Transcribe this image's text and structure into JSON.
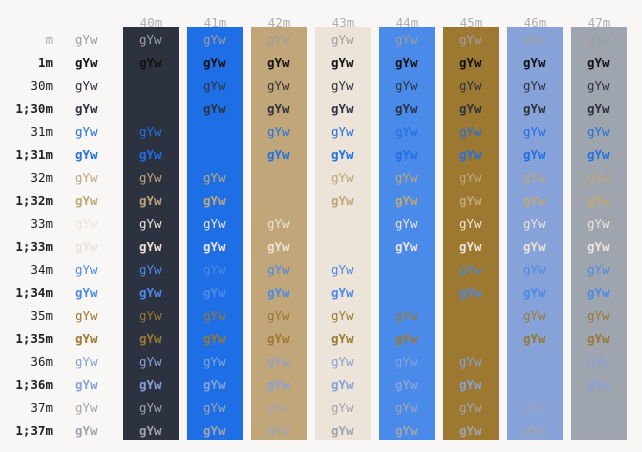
{
  "sample_text": "gYw",
  "foregrounds": [
    {
      "label": "m",
      "bold": false,
      "color": "#9e9e9e",
      "label_color": "#aeaeae"
    },
    {
      "label": "1m",
      "bold": true,
      "color": "#111111",
      "label_color": "#1e1e1e"
    },
    {
      "label": "30m",
      "bold": false,
      "color": "#2d3240",
      "label_color": "#1e1e1e"
    },
    {
      "label": "1;30m",
      "bold": true,
      "color": "#2d3240",
      "label_color": "#1e1e1e"
    },
    {
      "label": "31m",
      "bold": false,
      "color": "#1f6fe5",
      "label_color": "#1e1e1e"
    },
    {
      "label": "1;31m",
      "bold": true,
      "color": "#1f6fe5",
      "label_color": "#1e1e1e"
    },
    {
      "label": "32m",
      "bold": false,
      "color": "#c0a678",
      "label_color": "#1e1e1e"
    },
    {
      "label": "1;32m",
      "bold": true,
      "color": "#c0a678",
      "label_color": "#1e1e1e"
    },
    {
      "label": "33m",
      "bold": false,
      "color": "#ece4d8",
      "label_color": "#1e1e1e"
    },
    {
      "label": "1;33m",
      "bold": true,
      "color": "#ece4d8",
      "label_color": "#1e1e1e"
    },
    {
      "label": "34m",
      "bold": false,
      "color": "#4a8ae8",
      "label_color": "#1e1e1e"
    },
    {
      "label": "1;34m",
      "bold": true,
      "color": "#4a8ae8",
      "label_color": "#1e1e1e"
    },
    {
      "label": "35m",
      "bold": false,
      "color": "#9c7831",
      "label_color": "#1e1e1e"
    },
    {
      "label": "1;35m",
      "bold": true,
      "color": "#9c7831",
      "label_color": "#1e1e1e"
    },
    {
      "label": "36m",
      "bold": false,
      "color": "#86a2d8",
      "label_color": "#1e1e1e"
    },
    {
      "label": "1;36m",
      "bold": true,
      "color": "#86a2d8",
      "label_color": "#1e1e1e"
    },
    {
      "label": "37m",
      "bold": false,
      "color": "#9fa5ae",
      "label_color": "#1e1e1e"
    },
    {
      "label": "1;37m",
      "bold": true,
      "color": "#9fa5ae",
      "label_color": "#1e1e1e"
    }
  ],
  "backgrounds": [
    {
      "label": "",
      "color": "#f9f7f5"
    },
    {
      "label": "40m",
      "color": "#2d3240"
    },
    {
      "label": "41m",
      "color": "#1e6fe5"
    },
    {
      "label": "42m",
      "color": "#c0a678"
    },
    {
      "label": "43m",
      "color": "#ece4d8"
    },
    {
      "label": "44m",
      "color": "#4a8ae8"
    },
    {
      "label": "45m",
      "color": "#9c7831"
    },
    {
      "label": "46m",
      "color": "#86a2d8"
    },
    {
      "label": "47m",
      "color": "#9fa5ae"
    }
  ]
}
